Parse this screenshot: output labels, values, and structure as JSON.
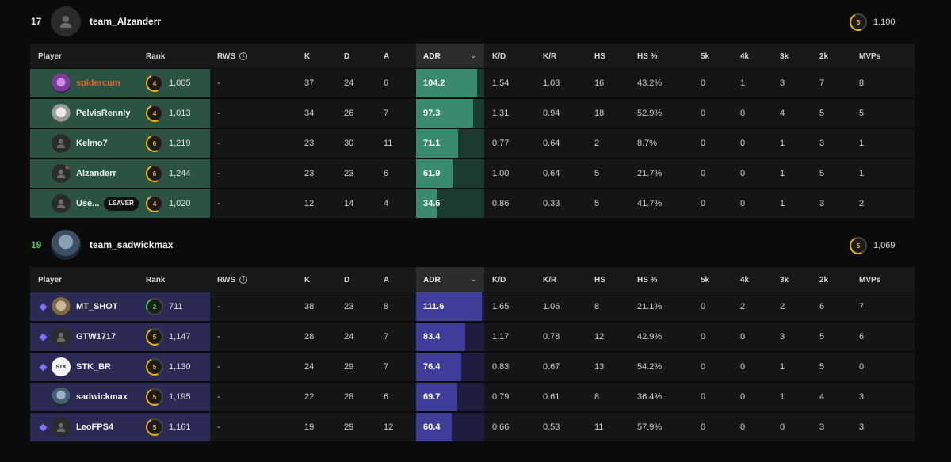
{
  "columns": [
    "Player",
    "Rank",
    "RWS",
    "K",
    "D",
    "A",
    "ADR",
    "K/D",
    "K/R",
    "HS",
    "HS %",
    "5k",
    "4k",
    "3k",
    "2k",
    "MVPs"
  ],
  "teams": [
    {
      "position": "17",
      "position_color": "#e6e6e6",
      "name": "team_Alzanderr",
      "avg_level": "5",
      "avg_elo": "1,100",
      "theme": "green",
      "players": [
        {
          "name": "spidercum",
          "level": "4",
          "elo": "1,005",
          "rws": "-",
          "k": "37",
          "d": "24",
          "a": "6",
          "adr": "104.2",
          "kd": "1.54",
          "kr": "1.03",
          "hs": "16",
          "hsp": "43.2%",
          "k5": "0",
          "k4": "1",
          "k3": "3",
          "k2": "7",
          "mvps": "8"
        },
        {
          "name": "PelvisRennly",
          "level": "4",
          "elo": "1,013",
          "rws": "-",
          "k": "34",
          "d": "26",
          "a": "7",
          "adr": "97.3",
          "kd": "1.31",
          "kr": "0.94",
          "hs": "18",
          "hsp": "52.9%",
          "k5": "0",
          "k4": "0",
          "k3": "4",
          "k2": "5",
          "mvps": "5"
        },
        {
          "name": "Kelmo7",
          "level": "6",
          "elo": "1,219",
          "rws": "-",
          "k": "23",
          "d": "30",
          "a": "11",
          "adr": "71.1",
          "kd": "0.77",
          "kr": "0.64",
          "hs": "2",
          "hsp": "8.7%",
          "k5": "0",
          "k4": "0",
          "k3": "1",
          "k2": "3",
          "mvps": "1"
        },
        {
          "name": "Alzanderr",
          "level": "6",
          "elo": "1,244",
          "rws": "-",
          "k": "23",
          "d": "23",
          "a": "6",
          "adr": "61.9",
          "kd": "1.00",
          "kr": "0.64",
          "hs": "5",
          "hsp": "21.7%",
          "k5": "0",
          "k4": "0",
          "k3": "1",
          "k2": "5",
          "mvps": "1"
        },
        {
          "name": "Use...",
          "badge": "LEAVER",
          "level": "4",
          "elo": "1,020",
          "rws": "-",
          "k": "12",
          "d": "14",
          "a": "4",
          "adr": "34.6",
          "kd": "0.86",
          "kr": "0.33",
          "hs": "5",
          "hsp": "41.7%",
          "k5": "0",
          "k4": "0",
          "k3": "1",
          "k2": "3",
          "mvps": "2"
        }
      ]
    },
    {
      "position": "19",
      "position_color": "#4cc95a",
      "name": "team_sadwickmax",
      "avg_level": "5",
      "avg_elo": "1,069",
      "theme": "purple",
      "players": [
        {
          "name": "MT_SHOT",
          "level": "2",
          "elo": "711",
          "rws": "-",
          "k": "38",
          "d": "23",
          "a": "8",
          "adr": "111.6",
          "kd": "1.65",
          "kr": "1.06",
          "hs": "8",
          "hsp": "21.1%",
          "k5": "0",
          "k4": "2",
          "k3": "2",
          "k2": "6",
          "mvps": "7"
        },
        {
          "name": "GTW1717",
          "level": "5",
          "elo": "1,147",
          "rws": "-",
          "k": "28",
          "d": "24",
          "a": "7",
          "adr": "83.4",
          "kd": "1.17",
          "kr": "0.78",
          "hs": "12",
          "hsp": "42.9%",
          "k5": "0",
          "k4": "0",
          "k3": "3",
          "k2": "5",
          "mvps": "6"
        },
        {
          "name": "STK_BR",
          "avatar_text": "STK",
          "level": "5",
          "elo": "1,130",
          "rws": "-",
          "k": "24",
          "d": "29",
          "a": "7",
          "adr": "76.4",
          "kd": "0.83",
          "kr": "0.67",
          "hs": "13",
          "hsp": "54.2%",
          "k5": "0",
          "k4": "0",
          "k3": "1",
          "k2": "5",
          "mvps": "0"
        },
        {
          "name": "sadwickmax",
          "level": "5",
          "elo": "1,195",
          "rws": "-",
          "k": "22",
          "d": "28",
          "a": "6",
          "adr": "69.7",
          "kd": "0.79",
          "kr": "0.61",
          "hs": "8",
          "hsp": "36.4%",
          "k5": "0",
          "k4": "0",
          "k3": "1",
          "k2": "4",
          "mvps": "3"
        },
        {
          "name": "LeoFPS4",
          "level": "5",
          "elo": "1,161",
          "rws": "-",
          "k": "19",
          "d": "29",
          "a": "12",
          "adr": "60.4",
          "kd": "0.66",
          "kr": "0.53",
          "hs": "11",
          "hsp": "57.9%",
          "k5": "0",
          "k4": "0",
          "k3": "0",
          "k2": "3",
          "mvps": "3"
        }
      ]
    }
  ],
  "adr_max": 116,
  "colors": {
    "team1_row": "#2a5441",
    "team2_row": "#2b2a55",
    "adr_green": "#3a8a6e",
    "adr_purple": "#3f3d9a",
    "highlight_name": "#e8642c"
  }
}
